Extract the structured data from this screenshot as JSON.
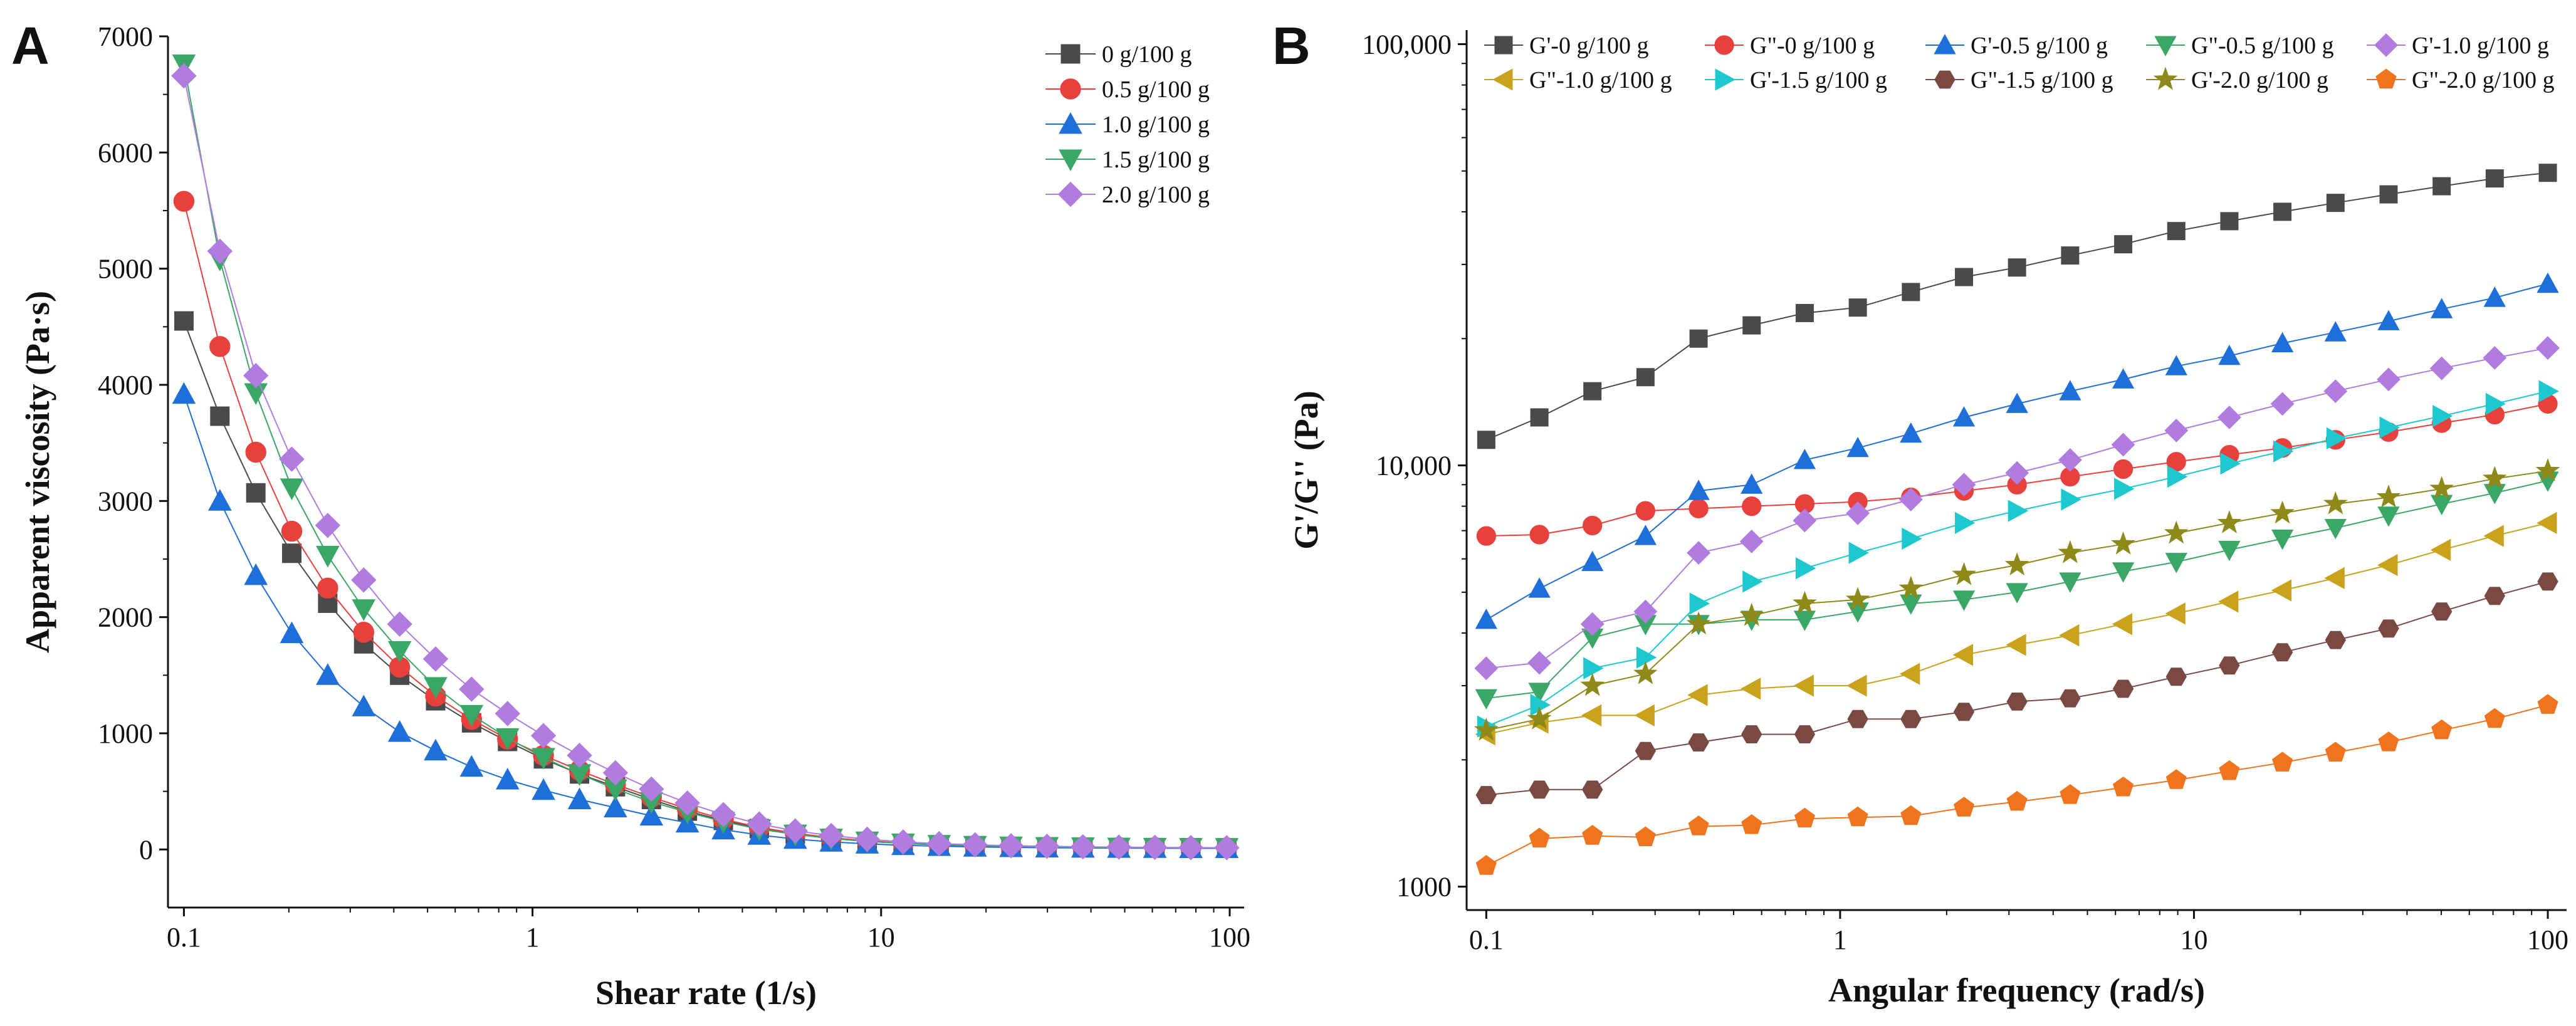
{
  "chart_data": [
    {
      "panel": "A",
      "type": "line",
      "xscale": "log",
      "xlabel": "Shear rate (1/s)",
      "ylabel": "Apparent viscosity (Pa·s)",
      "xlim": [
        0.09,
        110
      ],
      "ylim": [
        -500,
        7000
      ],
      "xticks": [
        0.1,
        1,
        10,
        100
      ],
      "xtick_labels": [
        "0.1",
        "1",
        "10",
        "100"
      ],
      "yticks": [
        0,
        1000,
        2000,
        3000,
        4000,
        5000,
        6000,
        7000
      ],
      "ytick_labels": [
        "0",
        "1000",
        "2000",
        "3000",
        "4000",
        "5000",
        "6000",
        "7000"
      ],
      "legend_position": "top-right",
      "x": [
        0.1,
        0.1268,
        0.1608,
        0.2039,
        0.2585,
        0.3279,
        0.4158,
        0.5273,
        0.6687,
        0.848,
        1.075,
        1.364,
        1.729,
        2.193,
        2.781,
        3.527,
        4.472,
        5.672,
        7.192,
        9.12,
        11.57,
        14.67,
        18.6,
        23.59,
        29.91,
        37.93,
        48.1,
        61,
        77.36,
        98.1
      ],
      "series": [
        {
          "name": "0 g/100 g",
          "color": "#4a4a4a",
          "marker": "square",
          "values": [
            4550,
            3730,
            3070,
            2550,
            2120,
            1770,
            1500,
            1280,
            1090,
            930,
            780,
            650,
            540,
            430,
            330,
            250,
            180,
            130,
            95,
            70,
            52,
            40,
            32,
            26,
            22,
            20,
            18,
            16,
            15,
            14
          ]
        },
        {
          "name": "0.5 g/100 g",
          "color": "#e8413d",
          "marker": "circle",
          "values": [
            5580,
            4330,
            3420,
            2740,
            2250,
            1870,
            1570,
            1320,
            1120,
            950,
            810,
            680,
            560,
            450,
            350,
            260,
            190,
            140,
            100,
            75,
            55,
            42,
            33,
            27,
            23,
            20,
            18,
            16,
            15,
            14
          ]
        },
        {
          "name": "1.0 g/100 g",
          "color": "#1f6fd8",
          "marker": "triangle-up",
          "values": [
            3920,
            3000,
            2360,
            1860,
            1500,
            1230,
            1010,
            850,
            710,
            600,
            510,
            430,
            360,
            290,
            230,
            170,
            125,
            90,
            65,
            48,
            36,
            28,
            22,
            18,
            15,
            13,
            12,
            11,
            10,
            10
          ]
        },
        {
          "name": "1.5 g/100 g",
          "color": "#3aa766",
          "marker": "triangle-down",
          "values": [
            6760,
            5080,
            3930,
            3110,
            2530,
            2070,
            1710,
            1400,
            1160,
            960,
            790,
            650,
            520,
            410,
            320,
            240,
            175,
            130,
            95,
            70,
            53,
            41,
            33,
            27,
            23,
            20,
            18,
            16,
            15,
            14
          ]
        },
        {
          "name": "2.0 g/100 g",
          "color": "#b07ce0",
          "marker": "diamond",
          "values": [
            6660,
            5150,
            4080,
            3360,
            2790,
            2320,
            1940,
            1640,
            1380,
            1170,
            980,
            810,
            660,
            520,
            400,
            300,
            220,
            160,
            120,
            88,
            65,
            50,
            40,
            32,
            27,
            23,
            20,
            18,
            16,
            15
          ]
        }
      ]
    },
    {
      "panel": "B",
      "type": "line",
      "xscale": "log",
      "yscale": "log",
      "xlabel": "Angular frequency (rad/s)",
      "ylabel": "G'/G'' (Pa)",
      "xlim": [
        0.088,
        113
      ],
      "ylim": [
        880,
        108000
      ],
      "xticks": [
        0.1,
        1,
        10,
        100
      ],
      "xtick_labels": [
        "0.1",
        "1",
        "10",
        "100"
      ],
      "yticks": [
        1000,
        10000,
        100000
      ],
      "ytick_labels": [
        "1000",
        "10,000",
        "100,000"
      ],
      "legend_position": "top",
      "x": [
        0.1,
        0.1413,
        0.1995,
        0.2818,
        0.3981,
        0.5623,
        0.7943,
        1.122,
        1.585,
        2.239,
        3.162,
        4.467,
        6.31,
        8.913,
        12.59,
        17.78,
        25.12,
        35.48,
        50.12,
        70.79,
        100
      ],
      "series": [
        {
          "name": "G'-0 g/100 g",
          "color": "#4a4a4a",
          "marker": "square",
          "values": [
            11500,
            13000,
            15000,
            16200,
            20000,
            21500,
            23000,
            23700,
            25800,
            28000,
            29500,
            31500,
            33500,
            36000,
            38000,
            40000,
            42000,
            44000,
            46000,
            48000,
            49500
          ]
        },
        {
          "name": "G\"-0 g/100 g",
          "color": "#e8413d",
          "marker": "circle",
          "values": [
            6800,
            6850,
            7200,
            7800,
            7900,
            8000,
            8100,
            8200,
            8400,
            8700,
            9000,
            9400,
            9800,
            10200,
            10600,
            11000,
            11500,
            12000,
            12600,
            13200,
            14000
          ]
        },
        {
          "name": "G'-0.5 g/100 g",
          "color": "#1f6fd8",
          "marker": "triangle-up",
          "values": [
            4300,
            5100,
            5900,
            6800,
            8700,
            9000,
            10300,
            11000,
            11900,
            13000,
            14000,
            15000,
            16000,
            17200,
            18200,
            19500,
            20700,
            22000,
            23500,
            25000,
            27000
          ]
        },
        {
          "name": "G\"-0.5 g/100 g",
          "color": "#3aa766",
          "marker": "triangle-down",
          "values": [
            2800,
            2900,
            3900,
            4200,
            4200,
            4300,
            4300,
            4500,
            4700,
            4800,
            5000,
            5300,
            5600,
            5900,
            6300,
            6700,
            7100,
            7600,
            8100,
            8600,
            9200
          ]
        },
        {
          "name": "G'-1.0 g/100 g",
          "color": "#b07ce0",
          "marker": "diamond",
          "values": [
            3300,
            3400,
            4200,
            4500,
            6200,
            6600,
            7400,
            7700,
            8300,
            9000,
            9600,
            10300,
            11200,
            12100,
            13000,
            14000,
            15000,
            16000,
            17000,
            18000,
            19000
          ]
        },
        {
          "name": "G\"-1.0 g/100 g",
          "color": "#c9a21e",
          "marker": "triangle-left",
          "values": [
            2300,
            2450,
            2550,
            2550,
            2850,
            2950,
            3000,
            3000,
            3200,
            3550,
            3750,
            3950,
            4200,
            4450,
            4750,
            5050,
            5400,
            5800,
            6300,
            6800,
            7300
          ]
        },
        {
          "name": "G'-1.5 g/100 g",
          "color": "#1ec8cf",
          "marker": "triangle-right",
          "values": [
            2400,
            2700,
            3300,
            3500,
            4700,
            5300,
            5700,
            6200,
            6700,
            7300,
            7800,
            8300,
            8800,
            9400,
            10100,
            10800,
            11600,
            12300,
            13100,
            14000,
            15000
          ]
        },
        {
          "name": "G\"-1.5 g/100 g",
          "color": "#7a4a42",
          "marker": "hexagon",
          "values": [
            1650,
            1700,
            1700,
            2100,
            2200,
            2300,
            2300,
            2500,
            2500,
            2600,
            2750,
            2800,
            2950,
            3150,
            3350,
            3600,
            3850,
            4100,
            4500,
            4900,
            5300
          ]
        },
        {
          "name": "G'-2.0 g/100 g",
          "color": "#8e8a1a",
          "marker": "star",
          "values": [
            2350,
            2500,
            3000,
            3200,
            4200,
            4400,
            4700,
            4800,
            5100,
            5500,
            5800,
            6200,
            6500,
            6900,
            7300,
            7700,
            8100,
            8400,
            8800,
            9300,
            9700
          ]
        },
        {
          "name": "G\"-2.0 g/100 g",
          "color": "#f0731e",
          "marker": "pentagon",
          "values": [
            1120,
            1300,
            1320,
            1310,
            1390,
            1400,
            1450,
            1460,
            1470,
            1540,
            1590,
            1650,
            1720,
            1790,
            1880,
            1970,
            2080,
            2200,
            2350,
            2500,
            2700
          ]
        }
      ]
    }
  ],
  "labels": {
    "panel_a": "A",
    "panel_b": "B"
  }
}
